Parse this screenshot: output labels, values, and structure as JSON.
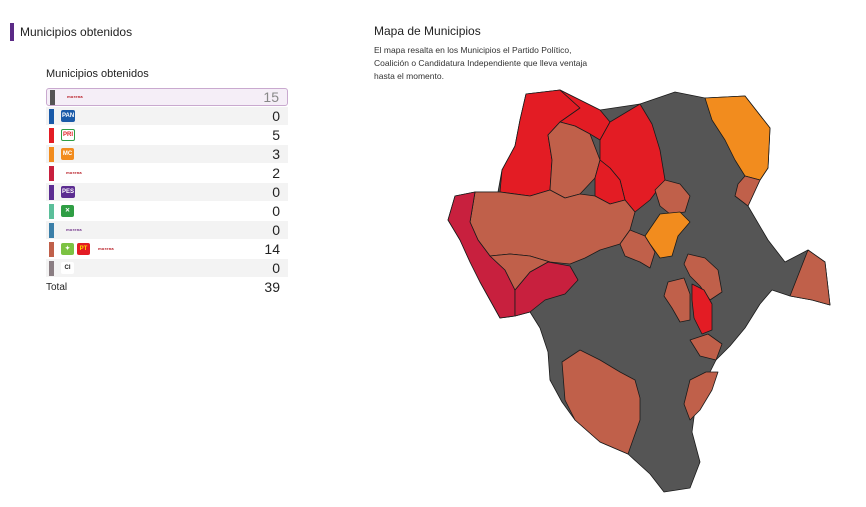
{
  "header": {
    "title": "Municipios obtenidos"
  },
  "results": {
    "heading": "Municipios obtenidos",
    "rows": [
      {
        "name": "morena",
        "color": "#555555",
        "logos": [
          {
            "icon": "morena-logo",
            "text": "morena",
            "bg": "transparent",
            "fg": "#b5121b",
            "wide": true
          }
        ],
        "count": "15"
      },
      {
        "name": "pan",
        "color": "#1a5aa8",
        "logos": [
          {
            "icon": "pan-logo",
            "text": "PAN",
            "bg": "#1a5aa8",
            "fg": "#ffffff"
          }
        ],
        "count": "0"
      },
      {
        "name": "pri",
        "color": "#e31c24",
        "logos": [
          {
            "icon": "pri-logo",
            "text": "PRI",
            "bg": "#ffffff",
            "fg": "#e31c24",
            "border": "#2f9e44"
          }
        ],
        "count": "5"
      },
      {
        "name": "mc",
        "color": "#f28c1e",
        "logos": [
          {
            "icon": "movimiento-ciudadano-logo",
            "text": "MC",
            "bg": "#f28c1e",
            "fg": "#ffffff"
          }
        ],
        "count": "3"
      },
      {
        "name": "morena-2",
        "color": "#c8203e",
        "logos": [
          {
            "icon": "morena-logo",
            "text": "morena",
            "bg": "transparent",
            "fg": "#b5121b",
            "wide": true
          }
        ],
        "count": "2"
      },
      {
        "name": "pes",
        "color": "#5c2d91",
        "logos": [
          {
            "icon": "pes-logo",
            "text": "PES",
            "bg": "#5c2d91",
            "fg": "#ffffff"
          }
        ],
        "count": "0"
      },
      {
        "name": "pvem",
        "color": "#5bbf9a",
        "logos": [
          {
            "icon": "pvem-logo",
            "text": "✕",
            "bg": "#2f9e44",
            "fg": "#ffffff"
          }
        ],
        "count": "0"
      },
      {
        "name": "morena-3",
        "color": "#3b7fa8",
        "logos": [
          {
            "icon": "morena-logo",
            "text": "morena",
            "bg": "transparent",
            "fg": "#6d2d86",
            "wide": true
          }
        ],
        "count": "0"
      },
      {
        "name": "coalicion-morena-pt-pvem",
        "color": "#c0604a",
        "logos": [
          {
            "icon": "pvem-logo",
            "text": "✦",
            "bg": "#7cc242",
            "fg": "#ffffff"
          },
          {
            "icon": "pt-logo",
            "text": "PT",
            "bg": "#e31c24",
            "fg": "#ffde00"
          },
          {
            "icon": "morena-logo",
            "text": "morena",
            "bg": "transparent",
            "fg": "#b5121b",
            "wide": true
          }
        ],
        "count": "14"
      },
      {
        "name": "ci",
        "color": "#8a7d82",
        "logos": [
          {
            "icon": "ci-logo",
            "text": "CI",
            "bg": "#ffffff",
            "fg": "#222222"
          }
        ],
        "count": "0"
      }
    ],
    "total_label": "Total",
    "total": "39"
  },
  "map": {
    "title": "Mapa de Municipios",
    "description": "El mapa resalta en los Municipios el Partido Político, Coalición o Candidatura Independiente que lleva ventaja hasta el momento.",
    "colors": {
      "gray": "#555555",
      "red": "#e31c24",
      "orange": "#f28c1e",
      "crimson": "#c8203e",
      "brown": "#c0604a"
    }
  }
}
